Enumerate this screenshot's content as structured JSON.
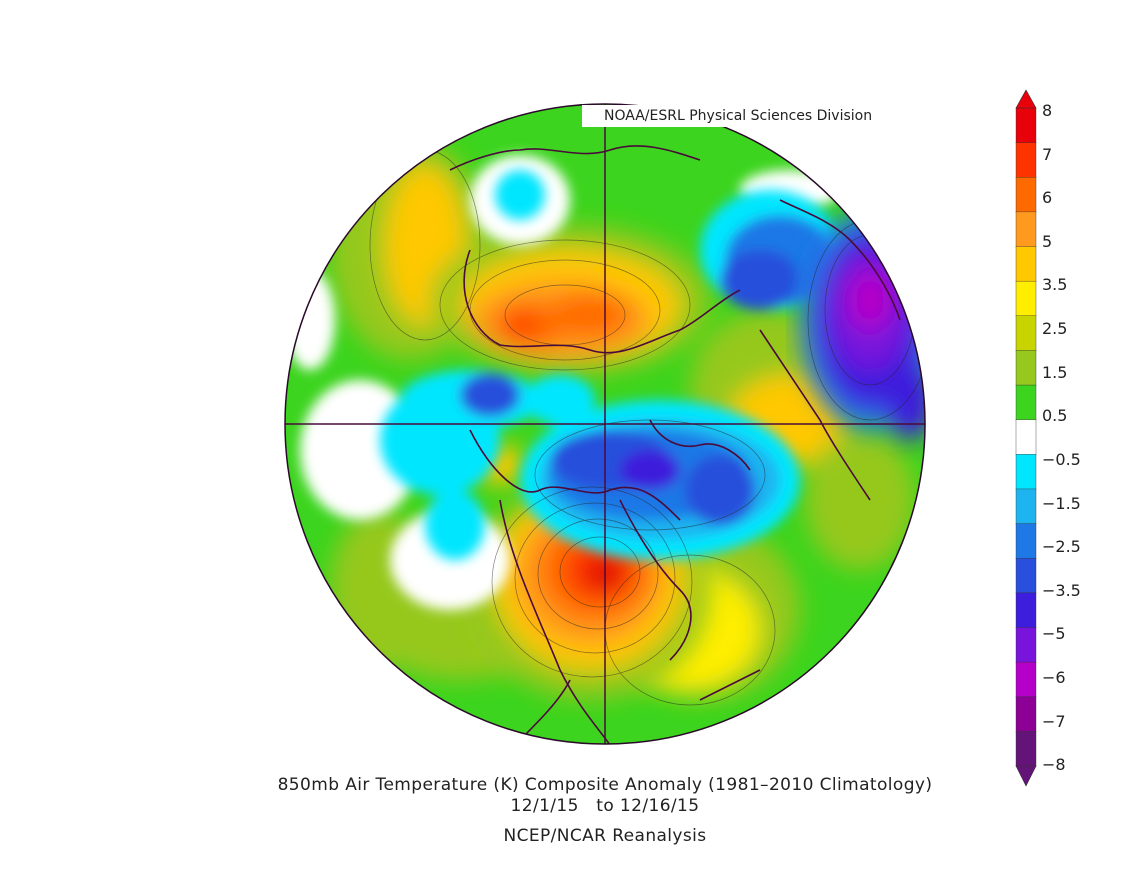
{
  "credit": "NOAA/ESRL Physical Sciences Division",
  "title_line1": "850mb Air Temperature (K) Composite Anomaly (1981–2010 Climatology)",
  "title_line2": "12/1/15   to 12/16/15",
  "title_line3": "NCEP/NCAR Reanalysis",
  "colorbar": {
    "labels": [
      "8",
      "7",
      "6",
      "5",
      "3.5",
      "2.5",
      "1.5",
      "0.5",
      "−0.5",
      "−1.5",
      "−2.5",
      "−3.5",
      "−5",
      "−6",
      "−7",
      "−8"
    ],
    "colors": [
      "#e8000b",
      "#ff3300",
      "#ff6a00",
      "#ff9a1e",
      "#ffc800",
      "#ffee00",
      "#c8d400",
      "#96c81e",
      "#3cd41e",
      "#ffffff",
      "#00e6ff",
      "#1eb4f0",
      "#1e78e6",
      "#2850dc",
      "#3c1edc",
      "#7814dc",
      "#b400c8",
      "#8c0096",
      "#641478"
    ],
    "units": "K"
  },
  "map": {
    "projection": "north polar stereographic",
    "regions": {
      "background": "#3cd41e",
      "warm_continents": "#96c81e",
      "na_warm": "#e8000b",
      "asia_warm": "#ff6a00",
      "siberia_cold": "#7814dc",
      "atlantic_cold": "#2850dc",
      "pacific_neutral": "#ffffff"
    }
  }
}
